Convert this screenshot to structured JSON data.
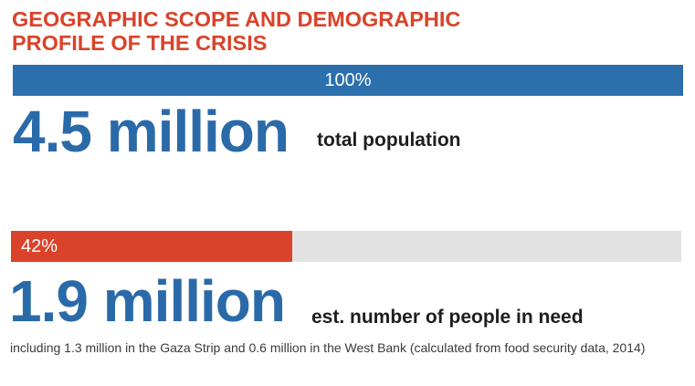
{
  "title_lines": [
    "GEOGRAPHIC SCOPE AND DEMOGRAPHIC",
    "PROFILE OF THE CRISIS"
  ],
  "colors": {
    "title": "#d9432a",
    "blue": "#2b6aa8",
    "bar_blue": "#2b6fad",
    "bar_red": "#d9432a",
    "track": "#e2e2e2"
  },
  "chart_data": {
    "type": "bar",
    "orientation": "horizontal",
    "title": "GEOGRAPHIC SCOPE AND DEMOGRAPHIC PROFILE OF THE CRISIS",
    "xlim": [
      0,
      100
    ],
    "series": [
      {
        "values": [
          100
        ],
        "color": "#2b6fad",
        "label": "100%"
      },
      {
        "values": [
          42
        ],
        "color": "#d9432a",
        "label": "42%"
      }
    ]
  },
  "stats": [
    {
      "number": "4.5 million",
      "caption": "total population"
    },
    {
      "number": "1.9 million",
      "caption": "est. number of people in need"
    }
  ],
  "footnote": "including 1.3 million in the Gaza Strip and 0.6 million in the West Bank (calculated from food security data, 2014)"
}
